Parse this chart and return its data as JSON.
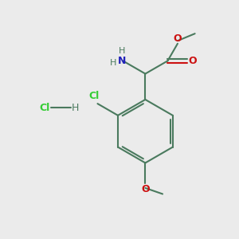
{
  "background_color": "#ebebeb",
  "bond_color": "#4a7a5e",
  "bond_width": 1.5,
  "cl_label_color": "#33cc33",
  "n_color": "#2222bb",
  "o_color": "#cc1111",
  "text_color": "#4a7a5e",
  "figsize": [
    3.0,
    3.0
  ],
  "dpi": 100,
  "xlim": [
    0,
    10
  ],
  "ylim": [
    0,
    10
  ]
}
